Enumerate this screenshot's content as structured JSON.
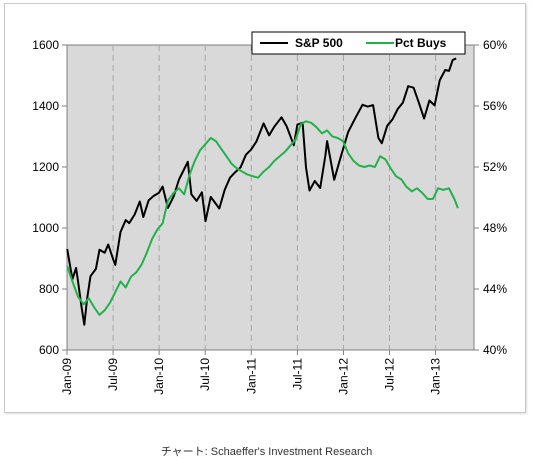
{
  "caption": "チャート: Schaeffer's Investment Research",
  "chart_data": {
    "type": "line",
    "title": "",
    "xlabel": "",
    "ylabel": "",
    "grid": "vertical dashed gridlines at quarterly ticks",
    "legend_position": "top-right",
    "plot_background": "#d9d9d9",
    "x_ticks": [
      "Jan-09",
      "Jul-09",
      "Jan-10",
      "Jul-10",
      "Jan-11",
      "Jul-11",
      "Jan-12",
      "Jul-12",
      "Jan-13"
    ],
    "x_range": [
      "2009-01",
      "2013-06"
    ],
    "y_left": {
      "ticks": [
        "600",
        "800",
        "1000",
        "1200",
        "1400",
        "1600"
      ],
      "range": [
        600,
        1600
      ]
    },
    "y_right": {
      "ticks": [
        "40%",
        "44%",
        "48%",
        "52%",
        "56%",
        "60%"
      ],
      "range": [
        40,
        60
      ]
    },
    "series": [
      {
        "name": "S&P 500",
        "axis": "left",
        "color": "#000000",
        "points": [
          [
            "2009-01-02",
            931
          ],
          [
            "2009-01-23",
            832
          ],
          [
            "2009-02-06",
            869
          ],
          [
            "2009-02-13",
            826
          ],
          [
            "2009-02-27",
            735
          ],
          [
            "2009-03-09",
            683
          ],
          [
            "2009-03-20",
            768
          ],
          [
            "2009-04-03",
            842
          ],
          [
            "2009-04-24",
            866
          ],
          [
            "2009-05-08",
            929
          ],
          [
            "2009-05-29",
            919
          ],
          [
            "2009-06-12",
            946
          ],
          [
            "2009-07-02",
            896
          ],
          [
            "2009-07-10",
            879
          ],
          [
            "2009-07-31",
            987
          ],
          [
            "2009-08-21",
            1026
          ],
          [
            "2009-09-04",
            1016
          ],
          [
            "2009-09-25",
            1044
          ],
          [
            "2009-10-16",
            1087
          ],
          [
            "2009-10-30",
            1036
          ],
          [
            "2009-11-20",
            1091
          ],
          [
            "2009-12-11",
            1106
          ],
          [
            "2009-12-31",
            1115
          ],
          [
            "2010-01-15",
            1136
          ],
          [
            "2010-02-05",
            1066
          ],
          [
            "2010-02-26",
            1104
          ],
          [
            "2010-03-19",
            1159
          ],
          [
            "2010-04-23",
            1217
          ],
          [
            "2010-05-07",
            1110
          ],
          [
            "2010-05-28",
            1089
          ],
          [
            "2010-06-18",
            1117
          ],
          [
            "2010-07-02",
            1022
          ],
          [
            "2010-07-23",
            1102
          ],
          [
            "2010-08-13",
            1079
          ],
          [
            "2010-08-27",
            1064
          ],
          [
            "2010-09-17",
            1125
          ],
          [
            "2010-10-08",
            1165
          ],
          [
            "2010-10-29",
            1183
          ],
          [
            "2010-11-19",
            1199
          ],
          [
            "2010-12-10",
            1240
          ],
          [
            "2010-12-31",
            1257
          ],
          [
            "2011-01-21",
            1283
          ],
          [
            "2011-02-18",
            1343
          ],
          [
            "2011-03-11",
            1304
          ],
          [
            "2011-04-01",
            1332
          ],
          [
            "2011-04-29",
            1363
          ],
          [
            "2011-05-20",
            1333
          ],
          [
            "2011-06-17",
            1271
          ],
          [
            "2011-07-01",
            1339
          ],
          [
            "2011-07-22",
            1345
          ],
          [
            "2011-08-05",
            1199
          ],
          [
            "2011-08-19",
            1123
          ],
          [
            "2011-09-09",
            1154
          ],
          [
            "2011-09-30",
            1131
          ],
          [
            "2011-10-21",
            1238
          ],
          [
            "2011-10-28",
            1285
          ],
          [
            "2011-11-25",
            1158
          ],
          [
            "2011-12-16",
            1219
          ],
          [
            "2011-12-30",
            1258
          ],
          [
            "2012-01-20",
            1315
          ],
          [
            "2012-02-17",
            1361
          ],
          [
            "2012-03-16",
            1404
          ],
          [
            "2012-04-06",
            1398
          ],
          [
            "2012-04-27",
            1403
          ],
          [
            "2012-05-18",
            1295
          ],
          [
            "2012-06-01",
            1278
          ],
          [
            "2012-06-22",
            1335
          ],
          [
            "2012-07-13",
            1356
          ],
          [
            "2012-08-03",
            1390
          ],
          [
            "2012-08-24",
            1411
          ],
          [
            "2012-09-14",
            1465
          ],
          [
            "2012-10-05",
            1460
          ],
          [
            "2012-10-26",
            1411
          ],
          [
            "2012-11-16",
            1359
          ],
          [
            "2012-12-07",
            1418
          ],
          [
            "2012-12-28",
            1402
          ],
          [
            "2013-01-18",
            1485
          ],
          [
            "2013-02-08",
            1518
          ],
          [
            "2013-02-22",
            1515
          ],
          [
            "2013-03-08",
            1551
          ],
          [
            "2013-03-22",
            1556
          ]
        ]
      },
      {
        "name": "Pct Buys",
        "axis": "right",
        "color": "#22b14c",
        "points": [
          [
            "2009-01-02",
            45.5
          ],
          [
            "2009-01-23",
            44.5
          ],
          [
            "2009-02-13",
            43.5
          ],
          [
            "2009-03-06",
            43.0
          ],
          [
            "2009-03-27",
            43.4
          ],
          [
            "2009-04-17",
            42.8
          ],
          [
            "2009-05-08",
            42.3
          ],
          [
            "2009-05-29",
            42.6
          ],
          [
            "2009-06-19",
            43.1
          ],
          [
            "2009-07-10",
            43.8
          ],
          [
            "2009-07-31",
            44.5
          ],
          [
            "2009-08-21",
            44.1
          ],
          [
            "2009-09-11",
            44.8
          ],
          [
            "2009-10-02",
            45.1
          ],
          [
            "2009-10-23",
            45.6
          ],
          [
            "2009-11-13",
            46.4
          ],
          [
            "2009-12-04",
            47.3
          ],
          [
            "2009-12-25",
            47.9
          ],
          [
            "2010-01-15",
            48.3
          ],
          [
            "2010-02-05",
            49.8
          ],
          [
            "2010-02-26",
            50.3
          ],
          [
            "2010-03-19",
            50.6
          ],
          [
            "2010-04-09",
            50.2
          ],
          [
            "2010-04-30",
            51.5
          ],
          [
            "2010-05-21",
            52.4
          ],
          [
            "2010-06-11",
            53.1
          ],
          [
            "2010-07-02",
            53.5
          ],
          [
            "2010-07-23",
            53.9
          ],
          [
            "2010-08-13",
            53.7
          ],
          [
            "2010-09-03",
            53.2
          ],
          [
            "2010-09-24",
            52.7
          ],
          [
            "2010-10-15",
            52.2
          ],
          [
            "2010-11-05",
            51.9
          ],
          [
            "2010-11-26",
            51.7
          ],
          [
            "2010-12-17",
            51.5
          ],
          [
            "2011-01-07",
            51.4
          ],
          [
            "2011-01-28",
            51.3
          ],
          [
            "2011-02-18",
            51.7
          ],
          [
            "2011-03-11",
            52.0
          ],
          [
            "2011-04-01",
            52.4
          ],
          [
            "2011-04-22",
            52.7
          ],
          [
            "2011-05-13",
            53.0
          ],
          [
            "2011-06-03",
            53.4
          ],
          [
            "2011-06-24",
            53.8
          ],
          [
            "2011-07-15",
            54.8
          ],
          [
            "2011-08-05",
            55.0
          ],
          [
            "2011-08-26",
            54.9
          ],
          [
            "2011-09-16",
            54.6
          ],
          [
            "2011-10-07",
            54.2
          ],
          [
            "2011-10-28",
            54.4
          ],
          [
            "2011-11-18",
            54.0
          ],
          [
            "2011-12-09",
            53.9
          ],
          [
            "2011-12-30",
            53.7
          ],
          [
            "2012-01-20",
            52.9
          ],
          [
            "2012-02-10",
            52.4
          ],
          [
            "2012-03-02",
            52.1
          ],
          [
            "2012-03-23",
            52.0
          ],
          [
            "2012-04-13",
            52.1
          ],
          [
            "2012-05-04",
            52.0
          ],
          [
            "2012-05-25",
            52.7
          ],
          [
            "2012-06-15",
            52.5
          ],
          [
            "2012-07-06",
            51.9
          ],
          [
            "2012-07-27",
            51.4
          ],
          [
            "2012-08-17",
            51.2
          ],
          [
            "2012-09-07",
            50.7
          ],
          [
            "2012-09-28",
            50.4
          ],
          [
            "2012-10-19",
            50.6
          ],
          [
            "2012-11-09",
            50.3
          ],
          [
            "2012-11-30",
            49.9
          ],
          [
            "2012-12-21",
            49.9
          ],
          [
            "2013-01-11",
            50.6
          ],
          [
            "2013-02-01",
            50.5
          ],
          [
            "2013-02-22",
            50.6
          ],
          [
            "2013-03-15",
            49.9
          ],
          [
            "2013-03-29",
            49.3
          ]
        ]
      }
    ]
  }
}
